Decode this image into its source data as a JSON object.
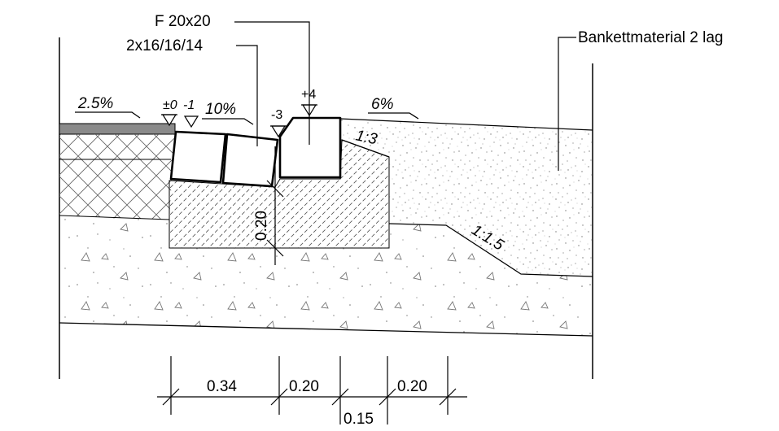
{
  "labels": {
    "stone_f": "F 20x20",
    "stone_2x": "2x16/16/14",
    "bankett": "Bankettmaterial 2 lag",
    "slope_road": "2.5%",
    "slope_gutter": "10%",
    "slope_bankett": "6%",
    "ratio_13": "1:3",
    "ratio_115": "1:1.5"
  },
  "levels": {
    "pm0": "±0",
    "m1": "-1",
    "m3": "-3",
    "p4": "+4"
  },
  "dimensions": {
    "depth": "0.20",
    "d034": "0.34",
    "d020a": "0.20",
    "d015": "0.15",
    "d020b": "0.20"
  },
  "colors": {
    "line": "#000000",
    "asphalt": "#8a8a8a",
    "hatch": "#555555",
    "stipple": "#888888"
  }
}
